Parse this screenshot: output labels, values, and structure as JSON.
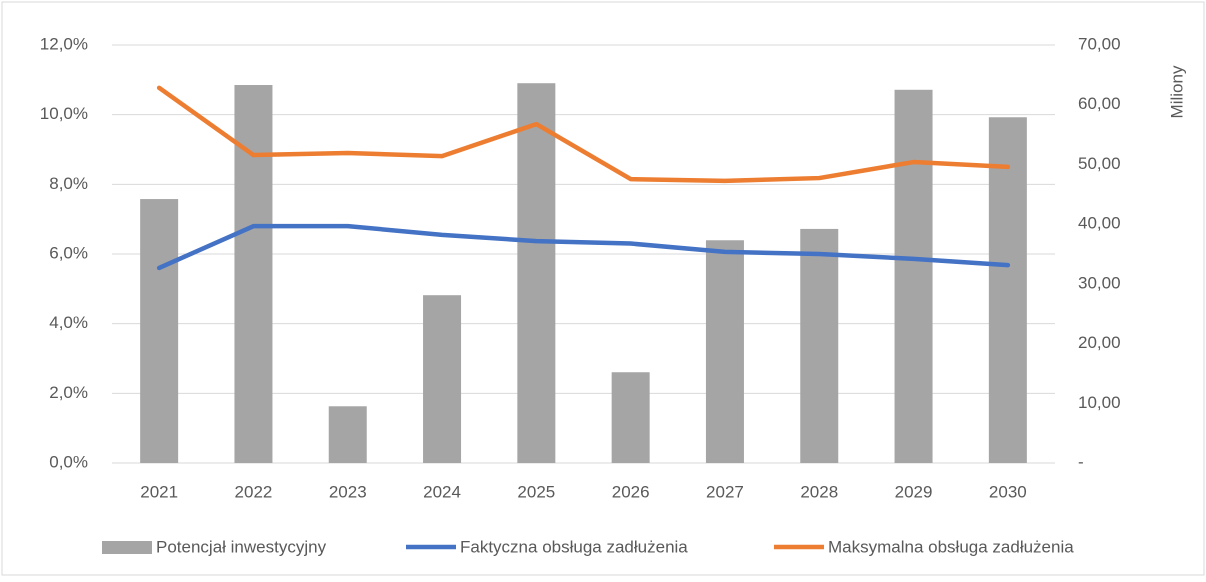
{
  "chart_data": {
    "type": "bar-line",
    "categories": [
      "2021",
      "2022",
      "2023",
      "2024",
      "2025",
      "2026",
      "2027",
      "2028",
      "2029",
      "2030"
    ],
    "y2_label": "Miliony",
    "series": [
      {
        "name": "Potencjał inwestycyjny",
        "type": "bar",
        "axis": "y2",
        "color": "#a5a5a5",
        "values": [
          44.2,
          63.3,
          9.5,
          28.1,
          63.6,
          15.2,
          37.3,
          39.2,
          62.5,
          57.9
        ]
      },
      {
        "name": "Faktyczna obsługa zadłużenia",
        "type": "line",
        "axis": "y",
        "color": "#4472c4",
        "values": [
          5.6,
          6.8,
          6.8,
          6.55,
          6.37,
          6.3,
          6.06,
          6.0,
          5.86,
          5.68
        ]
      },
      {
        "name": "Maksymalna obsługa zadłużenia",
        "type": "line",
        "axis": "y",
        "color": "#ed7d31",
        "values": [
          10.77,
          8.84,
          8.9,
          8.81,
          9.73,
          8.15,
          8.1,
          8.18,
          8.64,
          8.5
        ]
      }
    ],
    "ylim": [
      0,
      12
    ],
    "yticks": [
      {
        "value": 0,
        "label": "0,0%"
      },
      {
        "value": 2,
        "label": "2,0%"
      },
      {
        "value": 4,
        "label": "4,0%"
      },
      {
        "value": 6,
        "label": "6,0%"
      },
      {
        "value": 8,
        "label": "8,0%"
      },
      {
        "value": 10,
        "label": "10,0%"
      },
      {
        "value": 12,
        "label": "12,0%"
      }
    ],
    "y2lim": [
      0,
      70
    ],
    "y2ticks": [
      {
        "value": 0,
        "label": "-"
      },
      {
        "value": 10,
        "label": "10,00"
      },
      {
        "value": 20,
        "label": "20,00"
      },
      {
        "value": 30,
        "label": "30,00"
      },
      {
        "value": 40,
        "label": "40,00"
      },
      {
        "value": 50,
        "label": "50,00"
      },
      {
        "value": 60,
        "label": "60,00"
      },
      {
        "value": 70,
        "label": "70,00"
      }
    ],
    "grid": true,
    "legend": "bottom"
  }
}
